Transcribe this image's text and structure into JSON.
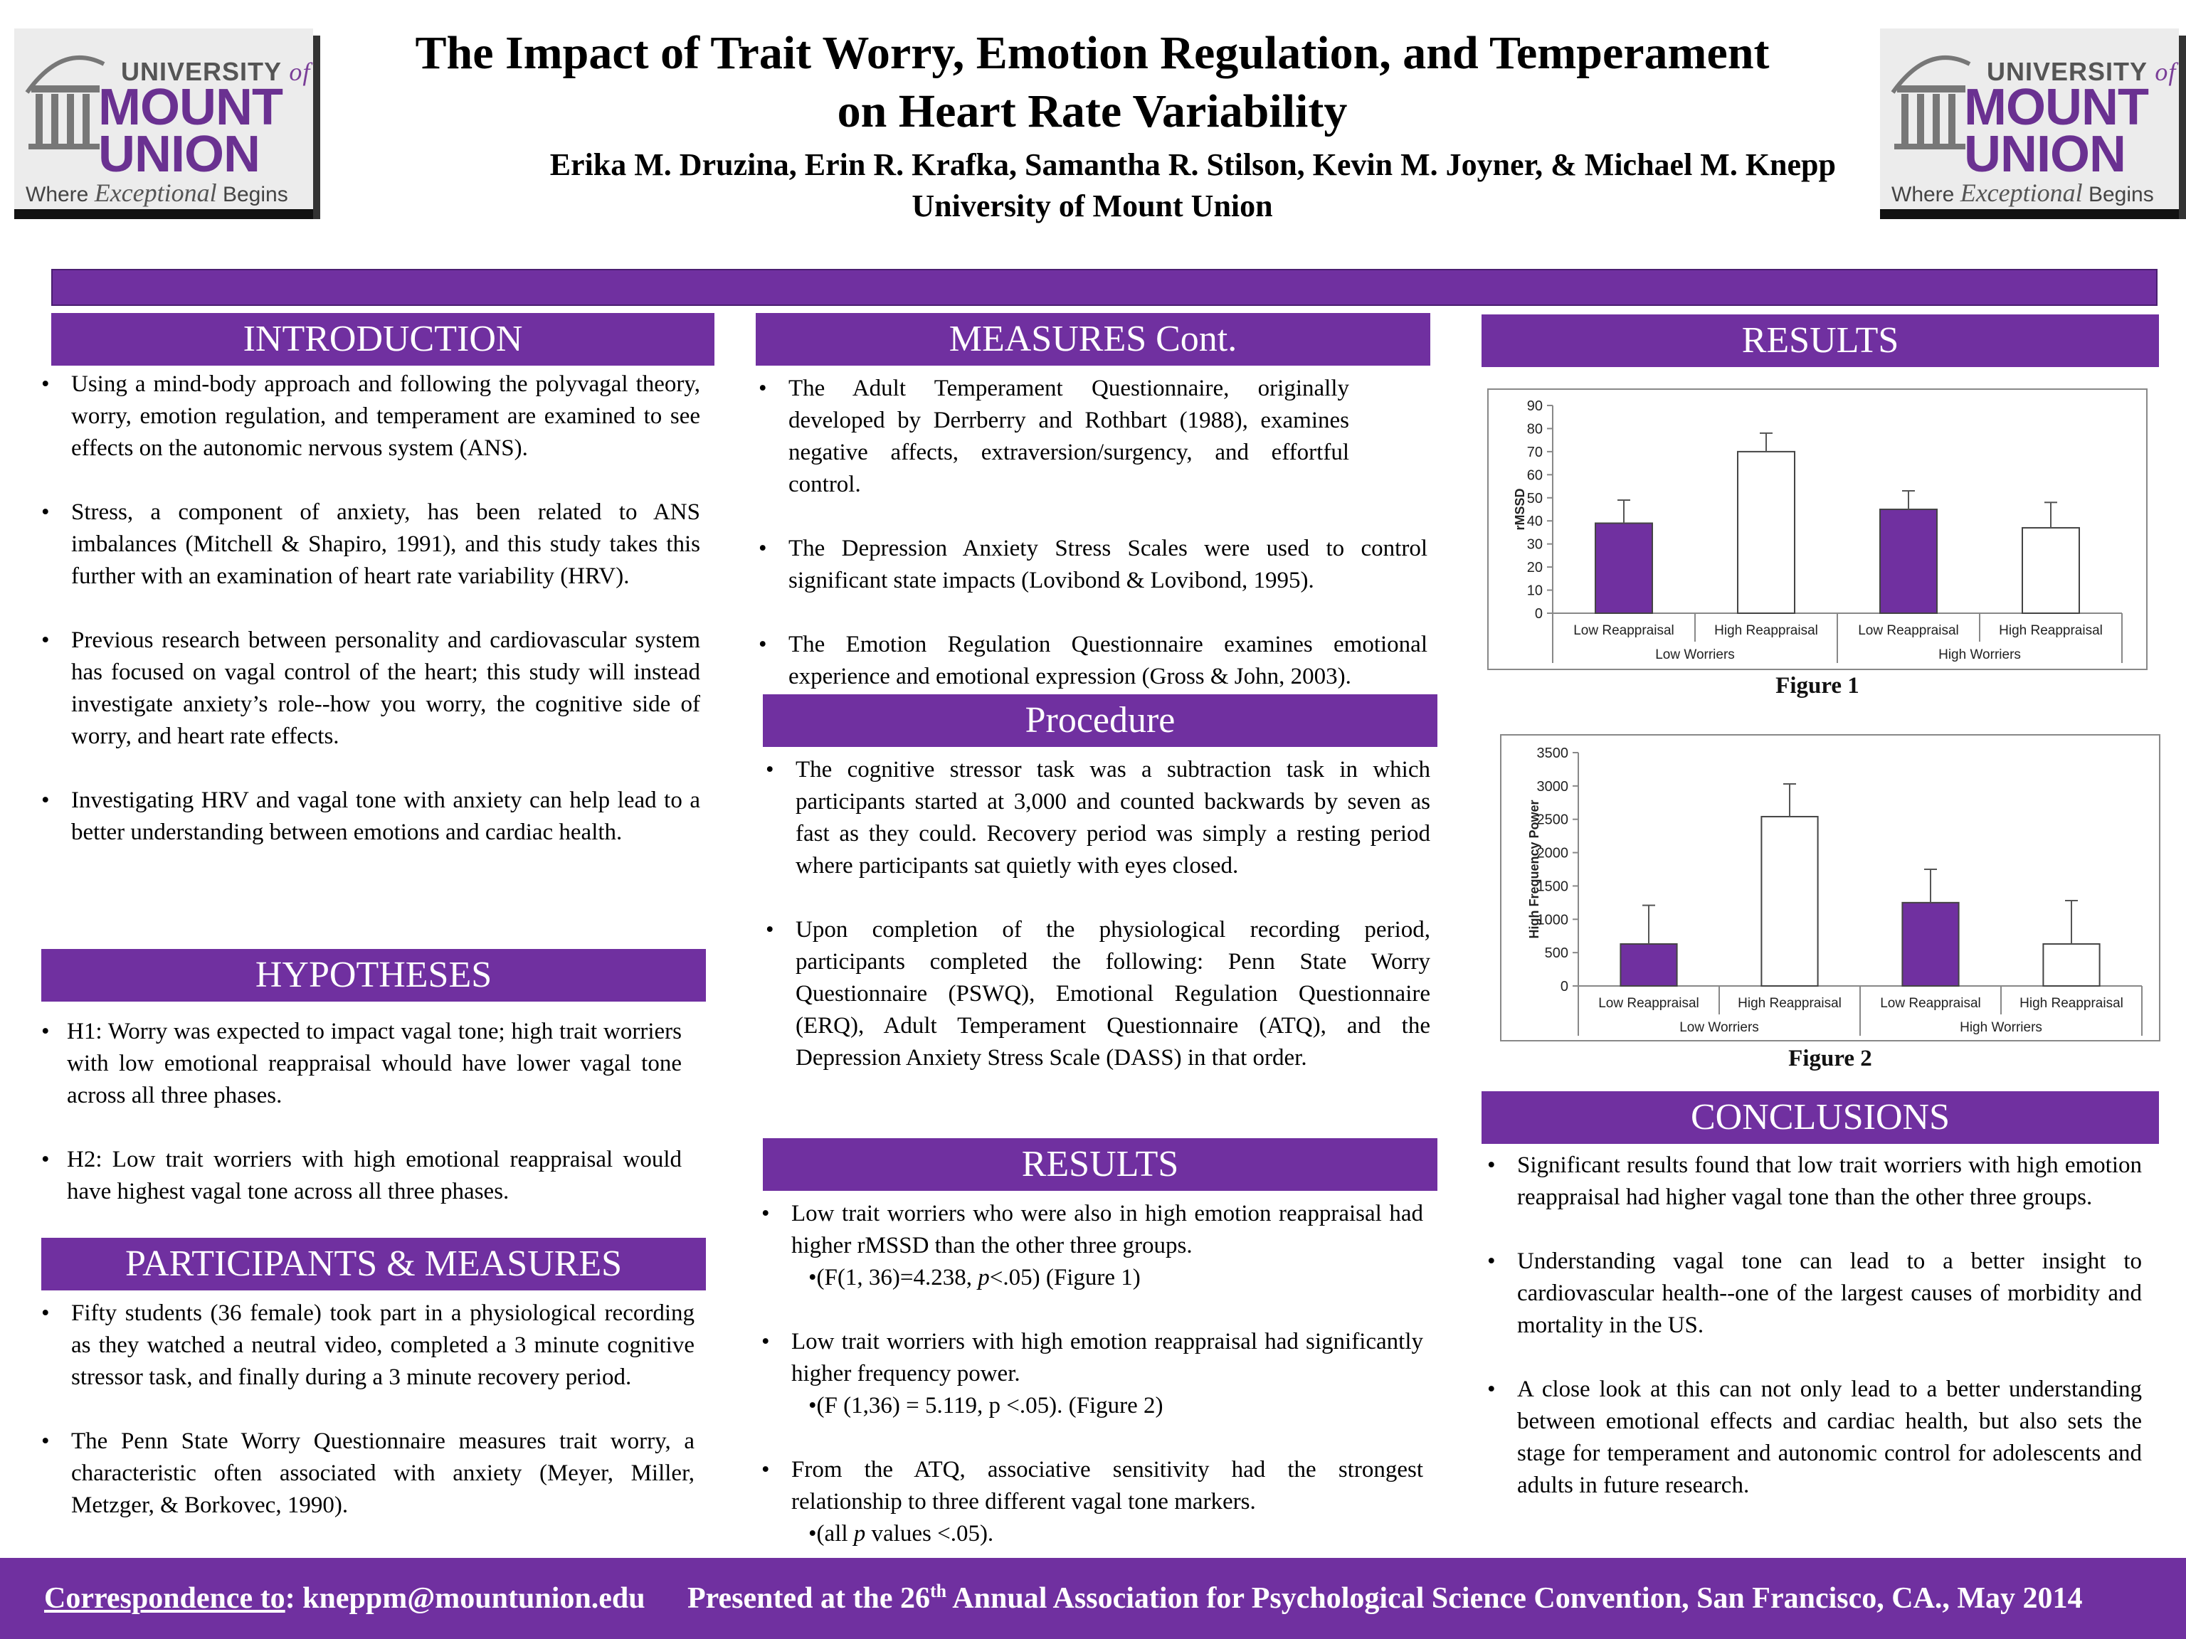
{
  "logo": {
    "university_label": "UNIVERSITY",
    "of_label": "of",
    "mount_label": "MOUNT",
    "union_label": "UNION",
    "tagline_pre": "Where",
    "tagline_em": "Exceptional",
    "tagline_post": "Begins",
    "brand_color": "#6a3191"
  },
  "header": {
    "title_line1": "The Impact of Trait Worry, Emotion Regulation, and Temperament",
    "title_line2": "on Heart Rate Variability",
    "authors": "Erika M. Druzina,  Erin R. Krafka, Samantha R. Stilson, Kevin M. Joyner, & Michael M. Knepp",
    "affiliation": "University of Mount Union"
  },
  "accent_color": "#7030a0",
  "introduction": {
    "heading": "INTRODUCTION",
    "bullets": [
      "Using a mind-body approach and following the polyvagal theory, worry, emotion regulation, and temperament are examined to see effects on the autonomic nervous system (ANS).",
      "Stress, a component of anxiety, has been related to ANS imbalances (Mitchell & Shapiro, 1991), and this study takes this further with an examination of heart rate variability (HRV).",
      "Previous research between personality and cardiovascular system has focused on vagal control of the heart; this study will instead investigate anxiety’s role--how you worry, the cognitive side of worry, and heart rate effects.",
      "Investigating HRV and vagal tone with anxiety can help lead to a better understanding between emotions and cardiac health."
    ]
  },
  "hypotheses": {
    "heading": "HYPOTHESES",
    "bullets": [
      "H1: Worry was expected to impact vagal tone; high trait worriers with low emotional reappraisal whould have lower vagal tone across all three phases.",
      "H2: Low trait worriers with high emotional reappraisal would have highest vagal tone across all three phases."
    ]
  },
  "participants": {
    "heading": "PARTICIPANTS & MEASURES",
    "bullets": [
      "Fifty students (36 female) took part in a physiological recording as they watched a neutral video, completed a 3 minute cognitive stressor task, and finally during a 3 minute recovery period.",
      "The Penn State Worry Questionnaire measures trait worry, a characteristic often associated with anxiety (Meyer, Miller, Metzger, & Borkovec, 1990)."
    ]
  },
  "measures_cont": {
    "heading": "MEASURES Cont.",
    "bullets": [
      "The Adult Temperament Questionnaire, originally developed by Derrberry and Rothbart (1988), examines negative affects, extraversion/surgency, and effortful control.",
      "The Depression Anxiety Stress Scales were used to control significant state impacts (Lovibond & Lovibond, 1995).",
      "The Emotion Regulation Questionnaire examines emotional experience and emotional expression (Gross & John, 2003)."
    ]
  },
  "procedure": {
    "heading": "Procedure",
    "bullets": [
      "The cognitive stressor task was a subtraction task in which participants started at 3,000 and counted backwards by seven as fast as they could. Recovery period was simply a resting period where participants sat quietly with eyes closed.",
      "Upon completion of the physiological recording period, participants completed the following: Penn State Worry Questionnaire (PSWQ), Emotional Regulation Questionnaire (ERQ), Adult Temperament Questionnaire (ATQ), and the Depression Anxiety Stress Scale (DASS) in that order."
    ]
  },
  "results_mid": {
    "heading": "RESULTS",
    "items": [
      {
        "text": "Low trait worriers who were also in high emotion reappraisal had higher rMSSD than the other three groups.",
        "stat_pre": "•(F(1, 36)=4.238, ",
        "stat_em": "p",
        "stat_post": "<.05) (Figure 1)"
      },
      {
        "text": "Low trait worriers with high emotion reappraisal had significantly higher frequency power.",
        "stat_pre": "•(F (1,36) = 5.119, p <.05). (Figure 2)",
        "stat_em": "",
        "stat_post": ""
      },
      {
        "text": "From the ATQ, associative sensitivity had the strongest relationship to three different vagal tone markers.",
        "stat_pre": "•(all ",
        "stat_em": "p",
        "stat_post": " values <.05)."
      }
    ]
  },
  "results_right": {
    "heading": "RESULTS",
    "figure1_caption": "Figure 1",
    "figure2_caption": "Figure 2"
  },
  "conclusions": {
    "heading": "CONCLUSIONS",
    "bullets": [
      "Significant results found that low trait worriers with high emotion reappraisal had higher vagal tone than the other three groups.",
      "Understanding vagal tone can lead to a better insight to cardiovascular health--one of the largest causes of morbidity and mortality in the US.",
      "A close look at this can not only lead to a better understanding between emotional effects and cardiac health, but also sets the stage for temperament and autonomic control for adolescents and adults in future research."
    ]
  },
  "footer": {
    "correspondence_label": "Correspondence to",
    "email": ": kneppm@mountunion.edu",
    "presented_pre": "Presented at the 26",
    "presented_sup": "th",
    "presented_post": " Annual Association for Psychological Science Convention, San Francisco, CA.,  May 2014"
  },
  "chart_data": [
    {
      "type": "bar",
      "title": "",
      "ylabel": "rMSSD",
      "xlabel": "",
      "ylim": [
        0,
        90
      ],
      "yticks": [
        0,
        10,
        20,
        30,
        40,
        50,
        60,
        70,
        80,
        90
      ],
      "categories": [
        "Low Reappraisal",
        "High Reappraisal",
        "Low Reappraisal",
        "High Reappraisal"
      ],
      "groups": [
        {
          "label": "Low Worriers",
          "span": [
            0,
            1
          ]
        },
        {
          "label": "High Worriers",
          "span": [
            2,
            3
          ]
        }
      ],
      "values": [
        39,
        70,
        45,
        37
      ],
      "errors": [
        10,
        8,
        8,
        11
      ],
      "bar_colors": [
        "#7030a0",
        "#ffffff",
        "#7030a0",
        "#ffffff"
      ],
      "grid": false
    },
    {
      "type": "bar",
      "title": "",
      "ylabel": "High Frequency Power",
      "xlabel": "",
      "ylim": [
        0,
        3500
      ],
      "yticks": [
        0,
        500,
        1000,
        1500,
        2000,
        2500,
        3000,
        3500
      ],
      "categories": [
        "Low Reappraisal",
        "High Reappraisal",
        "Low Reappraisal",
        "High Reappraisal"
      ],
      "groups": [
        {
          "label": "Low Worriers",
          "span": [
            0,
            1
          ]
        },
        {
          "label": "High Worriers",
          "span": [
            2,
            3
          ]
        }
      ],
      "values": [
        630,
        2540,
        1250,
        630
      ],
      "errors": [
        580,
        490,
        500,
        650
      ],
      "bar_colors": [
        "#7030a0",
        "#ffffff",
        "#7030a0",
        "#ffffff"
      ],
      "grid": false
    }
  ]
}
